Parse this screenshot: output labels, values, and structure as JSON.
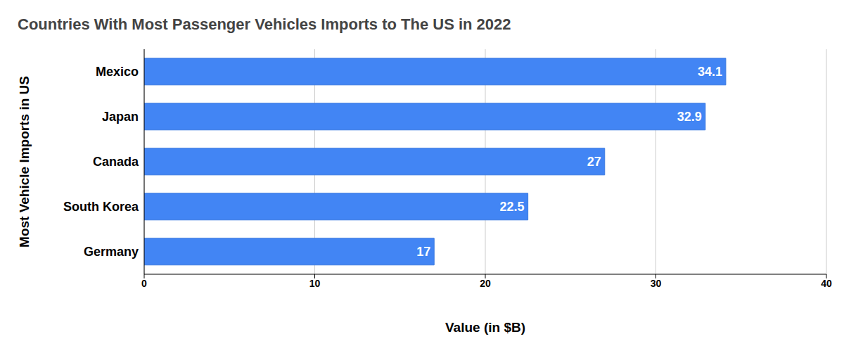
{
  "chart_data": {
    "type": "bar",
    "title": "Countries With Most Passenger Vehicles Imports to The US in 2022",
    "orientation": "horizontal",
    "categories": [
      "Mexico",
      "Japan",
      "Canada",
      "South Korea",
      "Germany"
    ],
    "values": [
      34.1,
      32.9,
      27,
      22.5,
      17
    ],
    "color": "#4285f4",
    "xlim": [
      0,
      40
    ],
    "xticks": [
      0,
      10,
      20,
      30,
      40
    ],
    "xlabel": "Value (in $B)",
    "ylabel": "Most Vehicle Imports in US",
    "grid": true,
    "data_labels": true
  }
}
